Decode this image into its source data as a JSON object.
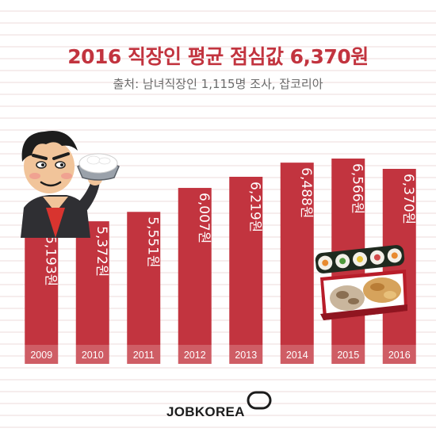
{
  "title": "2016 직장인 평균 점심값 6,370원",
  "subtitle": "출처: 남녀직장인 1,115명 조사, 잡코리아",
  "brand": "JOBKOREA",
  "colors": {
    "bar": "#c2343f",
    "title": "#c2343f",
    "label": "#ffffff",
    "category_strip": "#cf5d65"
  },
  "chart_data": {
    "type": "bar",
    "title": "2016 직장인 평균 점심값 6,370원",
    "subtitle": "출처: 남녀직장인 1,115명 조사, 잡코리아",
    "categories": [
      "2009",
      "2010",
      "2011",
      "2012",
      "2013",
      "2014",
      "2015",
      "2016"
    ],
    "values": [
      5193,
      5372,
      5551,
      6007,
      6219,
      6488,
      6566,
      6370
    ],
    "value_labels": [
      "5,193원",
      "5,372원",
      "5,551원",
      "6,007원",
      "6,219원",
      "6,488원",
      "6,566원",
      "6,370원"
    ],
    "xlabel": "",
    "ylabel": "",
    "grid": false,
    "legend": "none"
  }
}
